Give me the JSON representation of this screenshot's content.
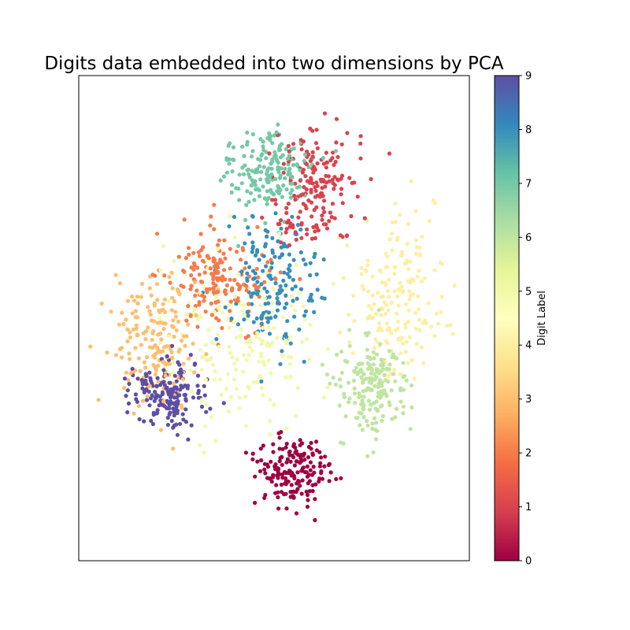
{
  "chart_data": {
    "type": "scatter",
    "title": "Digits data embedded into two dimensions by PCA",
    "xlabel": "",
    "ylabel": "",
    "xticks_shown": false,
    "yticks_shown": false,
    "grid": false,
    "xlim": [
      -32,
      32
    ],
    "ylim": [
      -32,
      32
    ],
    "colormap": "Spectral",
    "colorbar": {
      "label": "Digit Label",
      "range": [
        0,
        9
      ],
      "ticks": [
        "0",
        "1",
        "2",
        "3",
        "4",
        "5",
        "6",
        "7",
        "8",
        "9"
      ]
    },
    "clusters": [
      {
        "label": 0,
        "center": [
          3,
          -20
        ],
        "spread": [
          5.2,
          4.0
        ],
        "count": 178
      },
      {
        "label": 1,
        "center": [
          7,
          17
        ],
        "spread": [
          5.5,
          7.0
        ],
        "count": 182
      },
      {
        "label": 2,
        "center": [
          -9,
          5
        ],
        "spread": [
          7.0,
          5.5
        ],
        "count": 177
      },
      {
        "label": 3,
        "center": [
          -20,
          -3
        ],
        "spread": [
          6.0,
          7.0
        ],
        "count": 183
      },
      {
        "label": 4,
        "center": [
          20,
          3
        ],
        "spread": [
          6.5,
          8.5
        ],
        "count": 181
      },
      {
        "label": 5,
        "center": [
          -5,
          -3
        ],
        "spread": [
          10.0,
          9.0
        ],
        "count": 182
      },
      {
        "label": 6,
        "center": [
          16,
          -9
        ],
        "spread": [
          4.5,
          5.0
        ],
        "count": 181
      },
      {
        "label": 7,
        "center": [
          -1,
          19
        ],
        "spread": [
          5.5,
          4.5
        ],
        "count": 179
      },
      {
        "label": 8,
        "center": [
          0,
          5
        ],
        "spread": [
          6.0,
          7.5
        ],
        "count": 174
      },
      {
        "label": 9,
        "center": [
          -18,
          -10
        ],
        "spread": [
          5.0,
          3.5
        ],
        "count": 180
      }
    ]
  }
}
